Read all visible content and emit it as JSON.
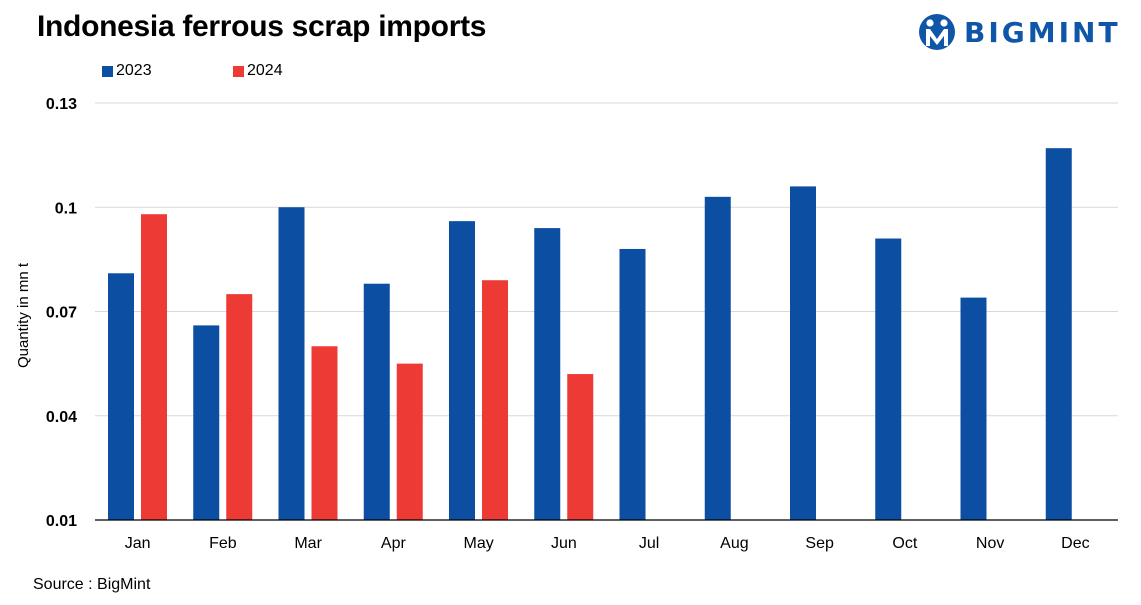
{
  "title": "Indonesia ferrous scrap imports",
  "logo": {
    "text": "BIGMINT",
    "color": "#0f56a8"
  },
  "source": "Source : BigMint",
  "chart_data": {
    "type": "bar",
    "categories": [
      "Jan",
      "Feb",
      "Mar",
      "Apr",
      "May",
      "Jun",
      "Jul",
      "Aug",
      "Sep",
      "Oct",
      "Nov",
      "Dec"
    ],
    "series": [
      {
        "name": "2023",
        "color": "#0b4ea2",
        "values": [
          0.081,
          0.066,
          0.1,
          0.078,
          0.096,
          0.094,
          0.088,
          0.103,
          0.106,
          0.091,
          0.074,
          0.117
        ]
      },
      {
        "name": "2024",
        "color": "#ee3a35",
        "values": [
          0.098,
          0.075,
          0.06,
          0.055,
          0.079,
          0.052,
          null,
          null,
          null,
          null,
          null,
          null
        ]
      }
    ],
    "yticks": [
      "0.13",
      "0.1",
      "0.07",
      "0.04",
      "0.01"
    ],
    "ytick_values": [
      0.13,
      0.1,
      0.07,
      0.04,
      0.01
    ],
    "ylim": [
      0.01,
      0.13
    ],
    "ylabel": "Quantity in mn t",
    "xlabel": "",
    "grid": true,
    "legend_position": "top-left"
  }
}
